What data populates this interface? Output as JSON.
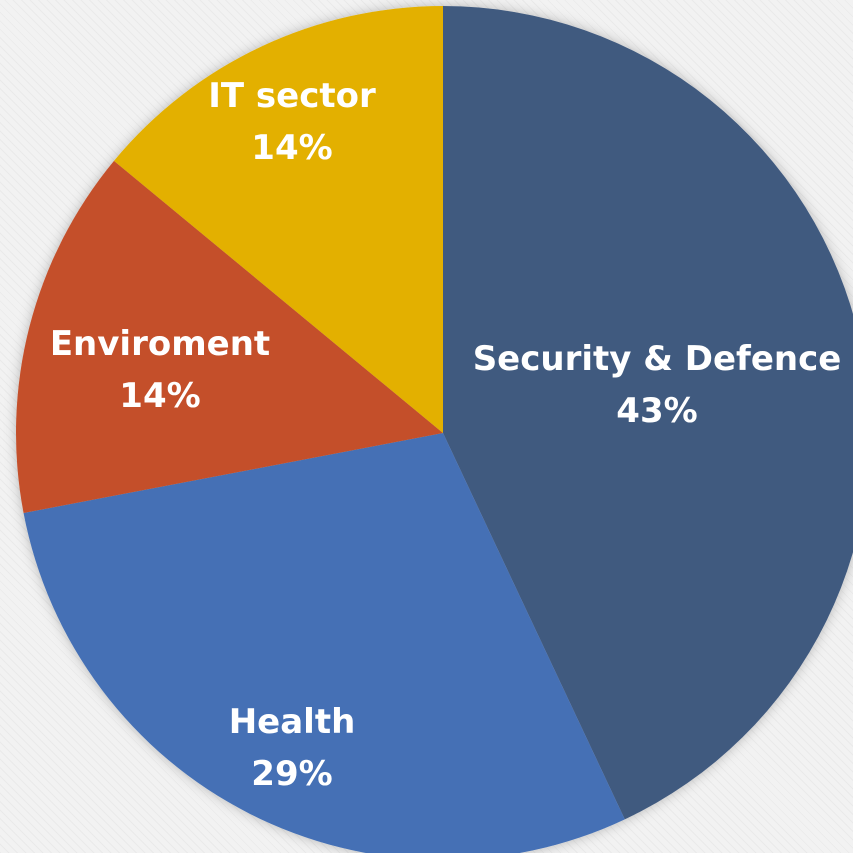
{
  "chart_data": {
    "type": "pie",
    "slices": [
      {
        "label": "Security & Defence",
        "value": 43,
        "value_label": "43%",
        "color": "#415a7f"
      },
      {
        "label": "Health",
        "value": 29,
        "value_label": "29%",
        "color": "#4470b5"
      },
      {
        "label": "Enviroment",
        "value": 14,
        "value_label": "14%",
        "color": "#c4502a"
      },
      {
        "label": "IT sector",
        "value": 14,
        "value_label": "14%",
        "color": "#e3b000"
      }
    ],
    "start_angle_deg": 0,
    "direction": "clockwise",
    "legend": "none",
    "data_labels": "inside"
  }
}
